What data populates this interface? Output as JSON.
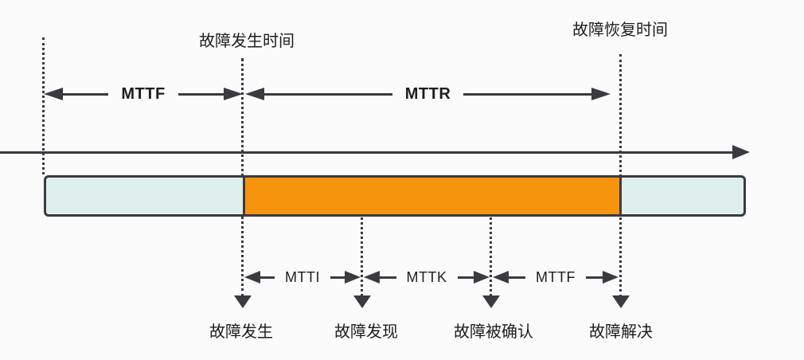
{
  "colors": {
    "background": "#fbfbfb",
    "ink": "#3a3a40",
    "text": "#1d1d1f",
    "bar-normal": "#dff0ec",
    "bar-failure": "#f7940e",
    "bar-border": "#3a3a40"
  },
  "markers": {
    "failure_occur_time": "故障发生时间",
    "failure_recover_time": "故障恢复时间"
  },
  "top_spans": {
    "mttf": "MTTF",
    "mttr": "MTTR"
  },
  "bottom_spans": {
    "mtti": "MTTI",
    "mttk": "MTTK",
    "mttf": "MTTF"
  },
  "events": {
    "occur": "故障发生",
    "found": "故障发现",
    "confirmed": "故障被确认",
    "resolved": "故障解决"
  },
  "bar_segments": [
    {
      "name": "normal-before-failure",
      "color": "#dff0ec"
    },
    {
      "name": "failure-period",
      "color": "#f7940e"
    },
    {
      "name": "normal-after-recovery",
      "color": "#dff0ec"
    }
  ]
}
